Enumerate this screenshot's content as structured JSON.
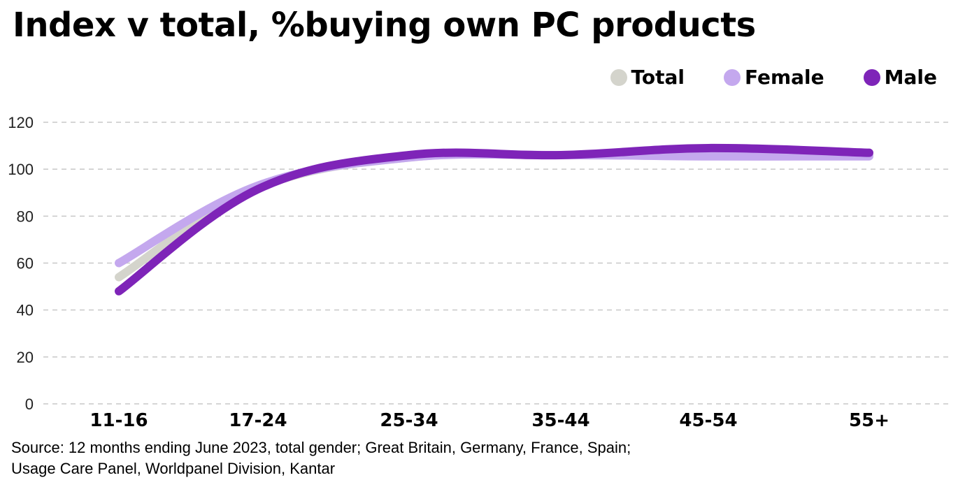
{
  "chart_data": {
    "type": "line",
    "title": "Index v total, %buying own PC products",
    "xlabel": "",
    "ylabel": "",
    "categories": [
      "11-16",
      "17-24",
      "25-34",
      "35-44",
      "45-54",
      "55+"
    ],
    "ylim": [
      0,
      120
    ],
    "yticks": [
      0,
      20,
      40,
      60,
      80,
      100,
      120
    ],
    "grid": true,
    "legend_position": "top-right",
    "series": [
      {
        "name": "Total",
        "color": "#d4d4cc",
        "values": [
          54,
          92,
          105,
          106,
          106,
          106
        ]
      },
      {
        "name": "Female",
        "color": "#c4a8ee",
        "values": [
          60,
          93,
          105,
          106,
          105.5,
          105.5
        ]
      },
      {
        "name": "Male",
        "color": "#7e24b8",
        "values": [
          48,
          91.5,
          106,
          106,
          109,
          107
        ]
      }
    ],
    "source": [
      "Source: 12 months ending June 2023, total gender; Great Britain, Germany, France, Spain;",
      "Usage Care Panel, Worldpanel Division, Kantar"
    ]
  }
}
